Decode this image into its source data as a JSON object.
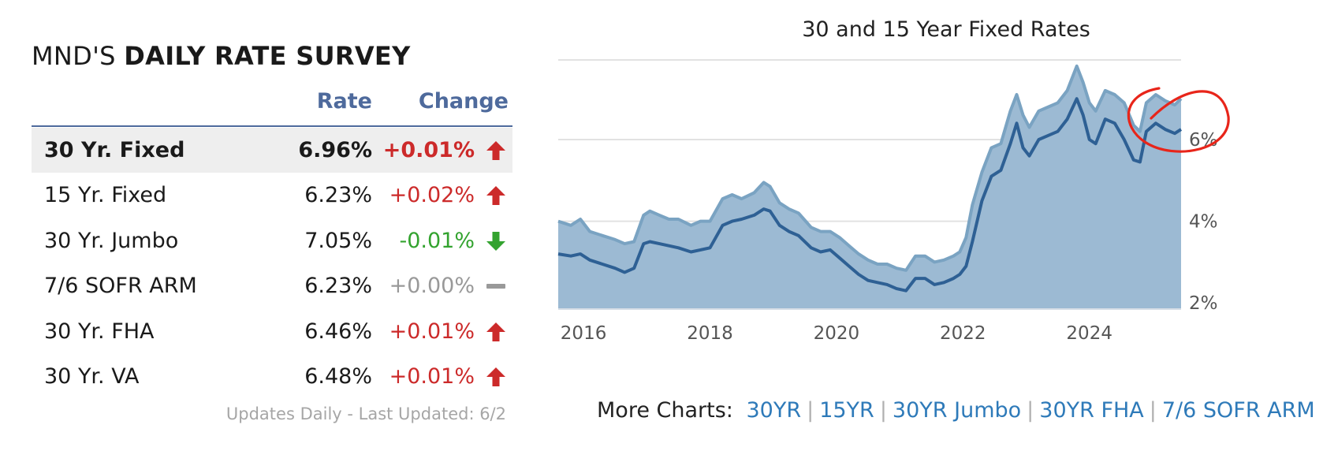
{
  "survey": {
    "title_light": "MND'S ",
    "title_bold": "DAILY RATE SURVEY",
    "col_rate": "Rate",
    "col_change": "Change",
    "rows": [
      {
        "name": "30 Yr. Fixed",
        "rate": "6.96%",
        "change": "+0.01%",
        "direction": "up"
      },
      {
        "name": "15 Yr. Fixed",
        "rate": "6.23%",
        "change": "+0.02%",
        "direction": "up"
      },
      {
        "name": "30 Yr. Jumbo",
        "rate": "7.05%",
        "change": "-0.01%",
        "direction": "down"
      },
      {
        "name": "7/6 SOFR ARM",
        "rate": "6.23%",
        "change": "+0.00%",
        "direction": "flat"
      },
      {
        "name": "30 Yr. FHA",
        "rate": "6.46%",
        "change": "+0.01%",
        "direction": "up"
      },
      {
        "name": "30 Yr. VA",
        "rate": "6.48%",
        "change": "+0.01%",
        "direction": "up"
      }
    ],
    "updated": "Updates Daily - Last Updated: 6/2",
    "colors": {
      "up": "#cc2a2a",
      "down": "#33a32f",
      "flat": "#999999",
      "header": "#4e6a9c"
    }
  },
  "more_charts": {
    "label": "More Charts:",
    "links": [
      "30YR",
      "15YR",
      "30YR Jumbo",
      "30YR FHA",
      "7/6 SOFR ARM"
    ]
  },
  "chart_data": {
    "type": "area",
    "title": "30 and 15 Year Fixed Rates",
    "x_tick_labels": [
      "2016",
      "2018",
      "2020",
      "2022",
      "2024"
    ],
    "y_tick_labels": [
      "2%",
      "4%",
      "6%"
    ],
    "xlim": [
      2015.6,
      2025.45
    ],
    "ylim": [
      1.85,
      7.95
    ],
    "grid": true,
    "legend": "none",
    "colors": {
      "area": "#9cbad3",
      "line_30yr": "#7aa3c2",
      "line_15yr": "#2e6094",
      "annotation": "#e8251a"
    },
    "series": [
      {
        "x": [
          2015.6,
          2015.8,
          2015.95,
          2016.1,
          2016.3,
          2016.5,
          2016.65,
          2016.8,
          2016.95,
          2017.05,
          2017.2,
          2017.35,
          2017.5,
          2017.7,
          2017.85,
          2018.0,
          2018.2,
          2018.35,
          2018.5,
          2018.7,
          2018.85,
          2018.95,
          2019.1,
          2019.25,
          2019.4,
          2019.6,
          2019.75,
          2019.9,
          2020.05,
          2020.2,
          2020.35,
          2020.5,
          2020.65,
          2020.8,
          2020.95,
          2021.1,
          2021.25,
          2021.4,
          2021.55,
          2021.7,
          2021.85,
          2021.95,
          2022.05,
          2022.15,
          2022.3,
          2022.45,
          2022.6,
          2022.75,
          2022.85,
          2022.95,
          2023.05,
          2023.2,
          2023.35,
          2023.5,
          2023.65,
          2023.8,
          2023.9,
          2024.0,
          2024.1,
          2024.25,
          2024.4,
          2024.55,
          2024.7,
          2024.8,
          2024.9,
          2025.05,
          2025.2,
          2025.35,
          2025.45
        ],
        "values": [
          4.0,
          3.9,
          4.05,
          3.75,
          3.65,
          3.55,
          3.45,
          3.5,
          4.15,
          4.25,
          4.15,
          4.05,
          4.05,
          3.9,
          4.0,
          4.0,
          4.55,
          4.65,
          4.55,
          4.7,
          4.95,
          4.85,
          4.45,
          4.3,
          4.2,
          3.85,
          3.75,
          3.75,
          3.6,
          3.4,
          3.2,
          3.05,
          2.95,
          2.95,
          2.85,
          2.8,
          3.15,
          3.15,
          3.0,
          3.05,
          3.15,
          3.25,
          3.6,
          4.4,
          5.2,
          5.8,
          5.9,
          6.7,
          7.1,
          6.6,
          6.3,
          6.7,
          6.8,
          6.9,
          7.2,
          7.8,
          7.4,
          6.9,
          6.7,
          7.2,
          7.1,
          6.9,
          6.35,
          6.2,
          6.9,
          7.1,
          6.95,
          6.85,
          7.0
        ]
      },
      {
        "x": [
          2015.6,
          2015.8,
          2015.95,
          2016.1,
          2016.3,
          2016.5,
          2016.65,
          2016.8,
          2016.95,
          2017.05,
          2017.2,
          2017.35,
          2017.5,
          2017.7,
          2017.85,
          2018.0,
          2018.2,
          2018.35,
          2018.5,
          2018.7,
          2018.85,
          2018.95,
          2019.1,
          2019.25,
          2019.4,
          2019.6,
          2019.75,
          2019.9,
          2020.05,
          2020.2,
          2020.35,
          2020.5,
          2020.65,
          2020.8,
          2020.95,
          2021.1,
          2021.25,
          2021.4,
          2021.55,
          2021.7,
          2021.85,
          2021.95,
          2022.05,
          2022.15,
          2022.3,
          2022.45,
          2022.6,
          2022.75,
          2022.85,
          2022.95,
          2023.05,
          2023.2,
          2023.35,
          2023.5,
          2023.65,
          2023.8,
          2023.9,
          2024.0,
          2024.1,
          2024.25,
          2024.4,
          2024.55,
          2024.7,
          2024.8,
          2024.9,
          2025.05,
          2025.2,
          2025.35,
          2025.45
        ],
        "values": [
          3.2,
          3.15,
          3.2,
          3.05,
          2.95,
          2.85,
          2.75,
          2.85,
          3.45,
          3.5,
          3.45,
          3.4,
          3.35,
          3.25,
          3.3,
          3.35,
          3.9,
          4.0,
          4.05,
          4.15,
          4.3,
          4.25,
          3.9,
          3.75,
          3.65,
          3.35,
          3.25,
          3.3,
          3.1,
          2.9,
          2.7,
          2.55,
          2.5,
          2.45,
          2.35,
          2.3,
          2.6,
          2.6,
          2.45,
          2.5,
          2.6,
          2.7,
          2.9,
          3.5,
          4.5,
          5.1,
          5.25,
          5.9,
          6.4,
          5.8,
          5.6,
          6.0,
          6.1,
          6.2,
          6.5,
          7.0,
          6.6,
          6.0,
          5.9,
          6.5,
          6.4,
          6.0,
          5.5,
          5.45,
          6.2,
          6.4,
          6.25,
          6.15,
          6.25
        ]
      }
    ]
  }
}
